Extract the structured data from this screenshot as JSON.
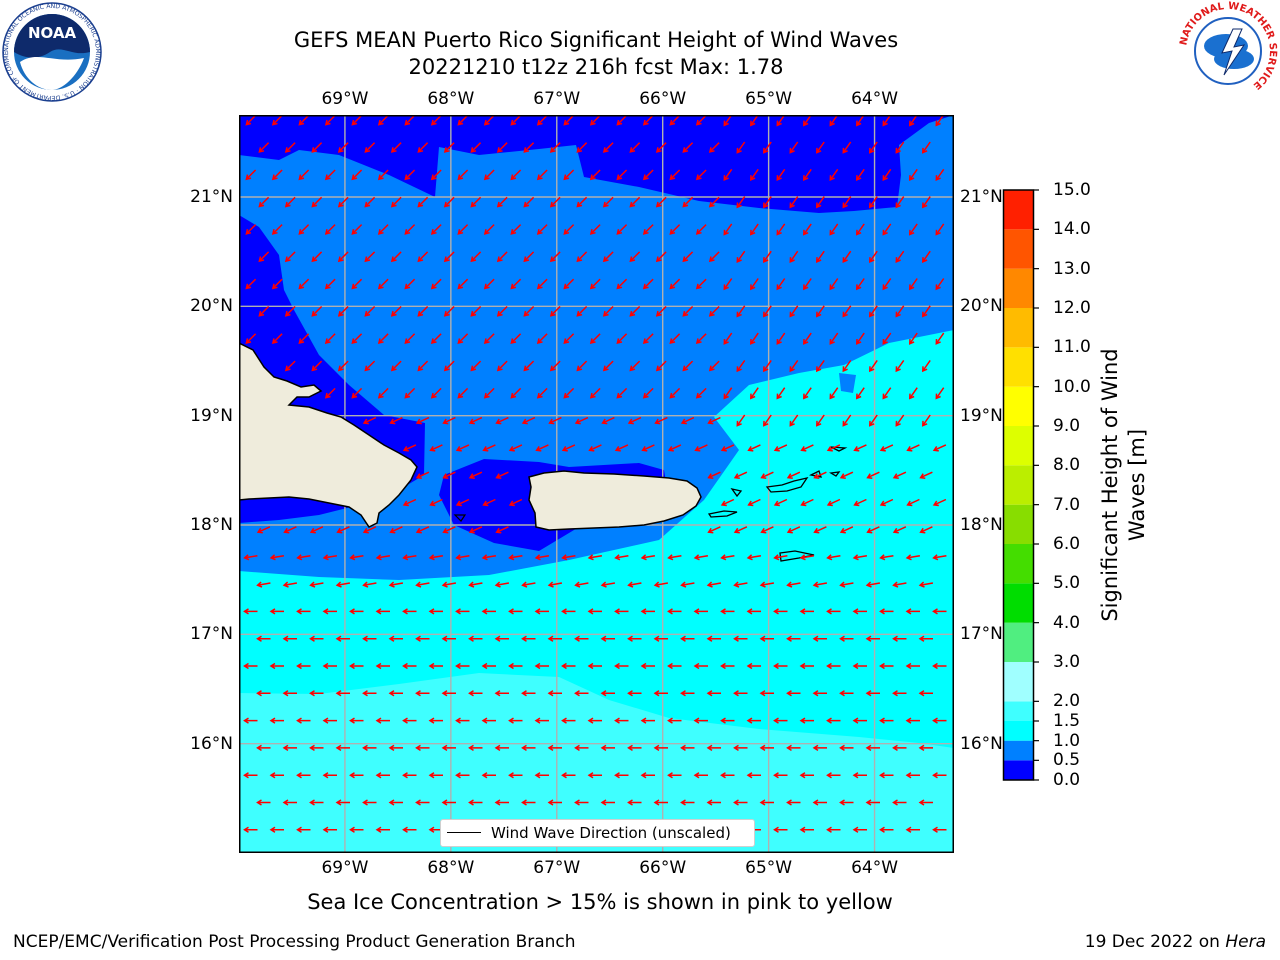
{
  "header": {
    "title_line1": "GEFS MEAN Puerto Rico Significant Height of Wind Waves",
    "title_line2": "20221210 t12z 216h fcst   Max: 1.78"
  },
  "logos": {
    "noaa": "NOAA",
    "noaa_ring": "NATIONAL OCEANIC AND ATMOSPHERIC ADMINISTRATION · U.S. DEPARTMENT OF COMMERCE",
    "nws_ring": "NATIONAL WEATHER SERVICE"
  },
  "map": {
    "lon_ticks": [
      "69°W",
      "68°W",
      "67°W",
      "66°W",
      "65°W",
      "64°W"
    ],
    "lat_ticks": [
      "21°N",
      "20°N",
      "19°N",
      "18°N",
      "17°N",
      "16°N"
    ],
    "lon_values": [
      -69,
      -68,
      -67,
      -66,
      -65,
      -64
    ],
    "lat_values": [
      21,
      20,
      19,
      18,
      17,
      16
    ],
    "extent": {
      "lon_min": -70,
      "lon_max": -63.25,
      "lat_min": 15,
      "lat_max": 21.75
    },
    "legend_label": "Wind Wave Direction (unscaled)",
    "colors": {
      "land": "#efecdc",
      "arrow": "#ff0000",
      "grid": "#b0b0b0"
    }
  },
  "colorbar": {
    "title_line1": "Significant Height of Wind",
    "title_line2": "Waves [m]",
    "tick_labels": [
      "0.0",
      "0.5",
      "1.0",
      "1.5",
      "2.0",
      "3.0",
      "4.0",
      "5.0",
      "6.0",
      "7.0",
      "8.0",
      "9.0",
      "10.0",
      "11.0",
      "12.0",
      "13.0",
      "14.0",
      "15.0"
    ],
    "colors": [
      "#0000ff",
      "#0080ff",
      "#00ffff",
      "#3fffff",
      "#a0ffff",
      "#50ee80",
      "#00dd00",
      "#44dd00",
      "#88dd00",
      "#bbee00",
      "#ddff00",
      "#ffff00",
      "#ffe000",
      "#ffbb00",
      "#ff8800",
      "#ff5500",
      "#ff2000"
    ]
  },
  "caption": "Sea Ice Concentration > 15% is shown in pink to yellow",
  "footer": {
    "left": "NCEP/EMC/Verification Post Processing Product Generation Branch",
    "right_prefix": "19 Dec 2022 on ",
    "right_host": "Hera"
  }
}
